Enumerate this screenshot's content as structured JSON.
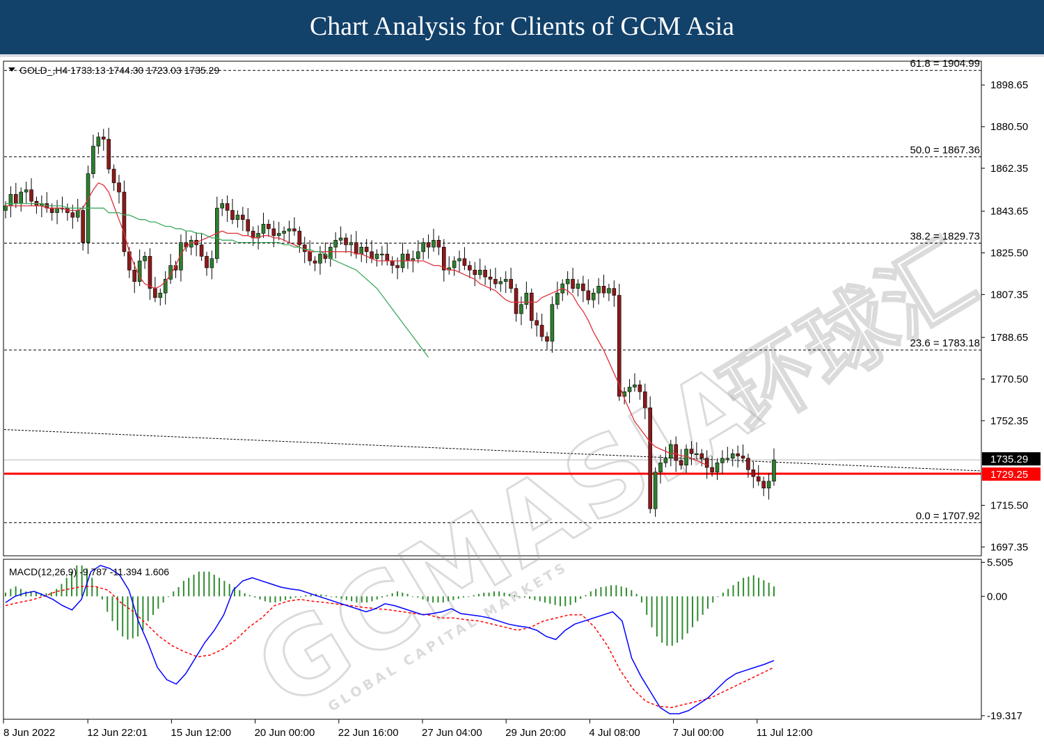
{
  "header": {
    "title": "Chart Analysis for Clients of GCM Asia"
  },
  "chart_data": {
    "type": "candlestick",
    "symbol_info": "GOLD_,H4  1733.13 1744.30 1723.03 1735.29",
    "price_axis": {
      "ticks": [
        "1898.65",
        "1880.50",
        "1862.35",
        "1843.65",
        "1825.50",
        "1807.35",
        "1788.65",
        "1770.50",
        "1752.35",
        "1715.50",
        "1697.35"
      ],
      "range": [
        1693.5,
        1909
      ]
    },
    "time_axis": {
      "ticks": [
        "8 Jun 2022",
        "12 Jun 22:01",
        "15 Jun 12:00",
        "20 Jun 00:00",
        "22 Jun 16:00",
        "27 Jun 04:00",
        "29 Jun 20:00",
        "4 Jul 08:00",
        "7 Jul 00:00",
        "11 Jul 12:00"
      ]
    },
    "current_price": {
      "label": "1735.29",
      "value": 1735.29
    },
    "support_level": {
      "label": "1729.25",
      "value": 1729.25,
      "color": "#ff0000"
    },
    "fibonacci": [
      {
        "label": "61.8 = 1904.99",
        "value": 1904.99
      },
      {
        "label": "50.0 = 1867.36",
        "value": 1867.36
      },
      {
        "label": "38.2 = 1829.73",
        "value": 1829.73
      },
      {
        "label": "23.6 = 1783.18",
        "value": 1783.18
      },
      {
        "label": "0.0 = 1707.92",
        "value": 1707.92
      }
    ],
    "trendline": {
      "from": 1748.5,
      "to": 1730.5
    },
    "close": [
      1846,
      1851,
      1847,
      1852,
      1853,
      1848,
      1846,
      1847,
      1845,
      1843,
      1845,
      1845,
      1843,
      1841,
      1844,
      1830,
      1860,
      1872,
      1876,
      1875,
      1862,
      1856,
      1852,
      1826,
      1818,
      1813,
      1822,
      1824,
      1810,
      1806,
      1808,
      1814,
      1820,
      1818,
      1830,
      1828,
      1831,
      1829,
      1824,
      1819,
      1823,
      1845,
      1847,
      1844,
      1840,
      1842,
      1840,
      1835,
      1832,
      1834,
      1838,
      1836,
      1833,
      1834,
      1835,
      1836,
      1835,
      1829,
      1826,
      1822,
      1821,
      1825,
      1823,
      1828,
      1831,
      1832,
      1829,
      1830,
      1825,
      1828,
      1826,
      1823,
      1825,
      1825,
      1822,
      1820,
      1819,
      1825,
      1822,
      1823,
      1826,
      1830,
      1828,
      1831,
      1828,
      1818,
      1819,
      1822,
      1823,
      1820,
      1818,
      1816,
      1818,
      1815,
      1814,
      1812,
      1813,
      1814,
      1810,
      1799,
      1803,
      1808,
      1796,
      1794,
      1789,
      1787,
      1803,
      1808,
      1812,
      1814,
      1810,
      1812,
      1809,
      1805,
      1808,
      1811,
      1808,
      1810,
      1807,
      1763,
      1765,
      1767,
      1768,
      1765,
      1758,
      1714,
      1730,
      1734,
      1736,
      1742,
      1735,
      1733,
      1740,
      1738,
      1738,
      1736,
      1732,
      1730,
      1734,
      1736,
      1736,
      1738,
      1737,
      1736,
      1731,
      1728,
      1726,
      1723,
      1726,
      1735.29
    ],
    "ma_fast": [
      1846,
      1846,
      1846,
      1846,
      1846,
      1846,
      1846,
      1846,
      1845,
      1845,
      1845,
      1845,
      1844,
      1844,
      1844,
      1845,
      1849,
      1853,
      1856,
      1855,
      1852,
      1846,
      1840,
      1834,
      1826,
      1820,
      1815,
      1812,
      1811,
      1810,
      1811,
      1813,
      1816,
      1820,
      1825,
      1828,
      1830,
      1830,
      1831,
      1832,
      1833,
      1834,
      1835,
      1834,
      1834,
      1834,
      1833,
      1833,
      1832,
      1832,
      1833,
      1833,
      1832,
      1832,
      1831,
      1830,
      1829,
      1828,
      1827,
      1826,
      1826,
      1826,
      1826,
      1826,
      1826,
      1826,
      1826,
      1826,
      1825,
      1825,
      1824,
      1823,
      1822,
      1822,
      1822,
      1822,
      1822,
      1822,
      1822,
      1822,
      1822,
      1822,
      1821,
      1820,
      1820,
      1819,
      1818,
      1818,
      1817,
      1816,
      1815,
      1814,
      1812,
      1811,
      1810,
      1809,
      1807,
      1805,
      1804,
      1804,
      1804,
      1804,
      1804,
      1804,
      1806,
      1807,
      1808,
      1809,
      1810,
      1809,
      1807,
      1803,
      1800,
      1796,
      1791,
      1787,
      1783,
      1778,
      1773,
      1768,
      1762,
      1757,
      1752,
      1749,
      1746,
      1743,
      1741,
      1740,
      1739,
      1738,
      1738,
      1737,
      1737,
      1736,
      1735,
      1734,
      1733
    ],
    "ma_slow": [
      1847,
      1847,
      1847,
      1847,
      1847,
      1847,
      1847,
      1847,
      1846,
      1846,
      1846,
      1846,
      1845,
      1845,
      1845,
      1845,
      1845,
      1845,
      1845,
      1845,
      1843,
      1843,
      1843,
      1842,
      1842,
      1841,
      1840,
      1840,
      1839,
      1839,
      1838,
      1837,
      1837,
      1836,
      1836,
      1835,
      1835,
      1834,
      1834,
      1833,
      1832,
      1832,
      1831,
      1831,
      1831,
      1830,
      1830,
      1830,
      1830,
      1830,
      1830,
      1830,
      1830,
      1830,
      1829,
      1829,
      1828,
      1828,
      1827,
      1827,
      1826,
      1826,
      1825,
      1823,
      1822,
      1821,
      1820,
      1819,
      1818,
      1816,
      1814,
      1812,
      1810,
      1807,
      1804,
      1801,
      1798,
      1795,
      1792,
      1789,
      1786,
      1783,
      1780
    ],
    "macd": {
      "label": "MACD(12,26,9) -9.787 -11.394 1.606",
      "ticks": [
        "5.505",
        "0.00",
        "-19.317"
      ],
      "range": [
        -19.9,
        6.0
      ],
      "main": [
        -1.0,
        0.0,
        0.5,
        0.8,
        0.2,
        -0.5,
        -1.5,
        -2.2,
        -0.5,
        4.0,
        5.0,
        4.5,
        3.5,
        1.0,
        -4.0,
        -7.5,
        -11.5,
        -13.5,
        -14.2,
        -12.5,
        -10.0,
        -7.5,
        -5.5,
        -3.0,
        1.0,
        2.5,
        3.0,
        2.5,
        2.0,
        1.5,
        1.2,
        1.0,
        0.5,
        0.0,
        -0.5,
        -1.0,
        -1.5,
        -2.0,
        -2.5,
        -2.0,
        -1.2,
        -1.5,
        -2.0,
        -2.5,
        -3.0,
        -2.8,
        -2.5,
        -2.0,
        -2.8,
        -3.0,
        -3.2,
        -3.5,
        -4.0,
        -4.5,
        -4.8,
        -5.0,
        -5.5,
        -6.5,
        -7.0,
        -5.5,
        -4.5,
        -4.0,
        -3.5,
        -3.0,
        -2.5,
        -4.0,
        -10.0,
        -13.0,
        -15.5,
        -18.0,
        -19.0,
        -19.0,
        -18.5,
        -17.5,
        -16.5,
        -15.0,
        -13.5,
        -12.5,
        -12.0,
        -11.5,
        -11.0,
        -10.4
      ],
      "signal": [
        -1.5,
        -1.0,
        -0.6,
        0.0,
        0.8,
        1.2,
        1.6,
        1.6,
        1.0,
        -1.0,
        -2.5,
        -4.5,
        -6.5,
        -8.0,
        -9.0,
        -9.8,
        -9.5,
        -8.5,
        -7.0,
        -5.0,
        -3.5,
        -1.5,
        -0.8,
        -0.5,
        -0.8,
        -1.0,
        -1.3,
        -1.5,
        -1.8,
        -2.0,
        -2.2,
        -2.5,
        -2.8,
        -3.0,
        -3.5,
        -3.5,
        -3.8,
        -4.0,
        -4.5,
        -5.0,
        -5.5,
        -5.0,
        -4.0,
        -3.5,
        -3.0,
        -3.0,
        -5.0,
        -8.0,
        -12.0,
        -15.0,
        -17.0,
        -17.8,
        -18.0,
        -17.5,
        -17.0,
        -16.5,
        -15.5,
        -14.5,
        -13.5,
        -12.5,
        -11.5
      ],
      "histogram": [
        0.6,
        1.2,
        1.6,
        1.2,
        0.8,
        0.8,
        0.7,
        0.5,
        0.5,
        0.7,
        1.2,
        2.0,
        3.0,
        4.0,
        5.0,
        5.0,
        4.5,
        3.0,
        1.5,
        -0.5,
        -2.5,
        -4.0,
        -5.5,
        -6.5,
        -7.0,
        -6.8,
        -6.5,
        -5.5,
        -4.0,
        -3.0,
        -2.0,
        -1.0,
        0.0,
        0.8,
        1.5,
        2.5,
        3.0,
        3.5,
        4.0,
        4.0,
        4.0,
        3.5,
        3.0,
        2.5,
        2.0,
        1.5,
        1.0,
        0.5,
        0.2,
        -0.2,
        -0.5,
        -0.8,
        -1.0,
        -1.0,
        -0.8,
        -0.6,
        -0.4,
        -0.2,
        0.0,
        0.2,
        0.3,
        0.4,
        0.3,
        0.2,
        0.0,
        -0.2,
        -0.4,
        -0.6,
        -0.8,
        -1.0,
        -1.0,
        -1.0,
        -0.8,
        -0.5,
        -0.2,
        0.2,
        0.5,
        0.8,
        0.6,
        0.4,
        0.0,
        -0.2,
        -0.5,
        -0.8,
        -1.0,
        -1.0,
        -1.0,
        -0.8,
        -0.6,
        -0.4,
        -0.2,
        0.0,
        0.2,
        0.4,
        0.6,
        0.6,
        0.8,
        0.8,
        0.6,
        0.4,
        0.2,
        0.0,
        -0.2,
        -0.4,
        -0.6,
        -0.8,
        -1.0,
        -1.2,
        -1.4,
        -1.6,
        -1.6,
        -1.4,
        -1.0,
        -0.4,
        0.2,
        0.8,
        1.2,
        1.5,
        1.6,
        1.8,
        1.8,
        1.6,
        1.4,
        1.0,
        0.4,
        -1.0,
        -3.0,
        -5.0,
        -6.5,
        -7.5,
        -8.0,
        -8.0,
        -7.5,
        -7.0,
        -6.0,
        -5.0,
        -4.0,
        -3.0,
        -2.0,
        -1.0,
        0.0,
        0.6,
        1.2,
        1.8,
        2.4,
        3.0,
        3.2,
        3.4,
        3.0,
        2.6,
        2.2,
        1.6
      ]
    },
    "watermark": {
      "brand": "GCMASIA",
      "tagline": "GLOBAL CAPITAL MARKETS",
      "cn": "环球汇"
    },
    "colors": {
      "bull": "#2e7d2e",
      "bear": "#8b1a1a",
      "ma_fast": "#e0303a",
      "ma_slow": "#3aaa5c",
      "macd_main": "#0000ff",
      "macd_signal": "#ff0000",
      "macd_hist": "#2e8b2e"
    }
  }
}
